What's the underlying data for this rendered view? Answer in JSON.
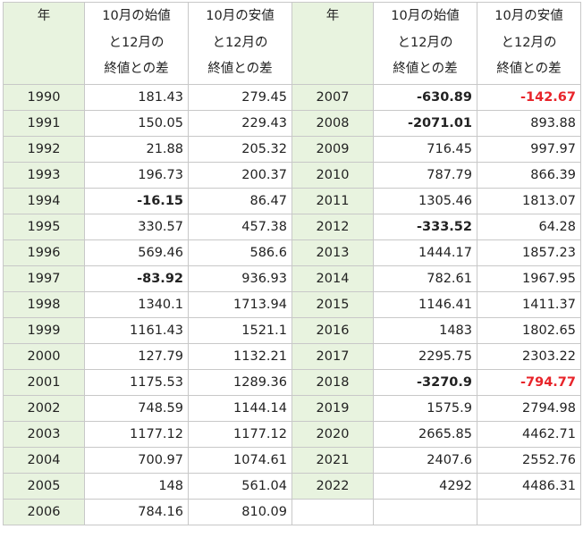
{
  "headers": {
    "year": "年",
    "start_diff": [
      "10月の始値",
      "と12月の",
      "終値との差"
    ],
    "low_diff": [
      "10月の安値",
      "と12月の",
      "終値との差"
    ]
  },
  "rows": [
    {
      "left": {
        "year": "1990",
        "a": "181.43",
        "b": "279.45",
        "a_bold": false,
        "b_bold": false,
        "b_red": false
      },
      "right": {
        "year": "2007",
        "a": "-630.89",
        "b": "-142.67",
        "a_bold": true,
        "b_bold": true,
        "b_red": true
      }
    },
    {
      "left": {
        "year": "1991",
        "a": "150.05",
        "b": "229.43",
        "a_bold": false,
        "b_bold": false,
        "b_red": false
      },
      "right": {
        "year": "2008",
        "a": "-2071.01",
        "b": "893.88",
        "a_bold": true,
        "b_bold": false,
        "b_red": false
      }
    },
    {
      "left": {
        "year": "1992",
        "a": "21.88",
        "b": "205.32",
        "a_bold": false,
        "b_bold": false,
        "b_red": false
      },
      "right": {
        "year": "2009",
        "a": "716.45",
        "b": "997.97",
        "a_bold": false,
        "b_bold": false,
        "b_red": false
      }
    },
    {
      "left": {
        "year": "1993",
        "a": "196.73",
        "b": "200.37",
        "a_bold": false,
        "b_bold": false,
        "b_red": false
      },
      "right": {
        "year": "2010",
        "a": "787.79",
        "b": "866.39",
        "a_bold": false,
        "b_bold": false,
        "b_red": false
      }
    },
    {
      "left": {
        "year": "1994",
        "a": "-16.15",
        "b": "86.47",
        "a_bold": true,
        "b_bold": false,
        "b_red": false
      },
      "right": {
        "year": "2011",
        "a": "1305.46",
        "b": "1813.07",
        "a_bold": false,
        "b_bold": false,
        "b_red": false
      }
    },
    {
      "left": {
        "year": "1995",
        "a": "330.57",
        "b": "457.38",
        "a_bold": false,
        "b_bold": false,
        "b_red": false
      },
      "right": {
        "year": "2012",
        "a": "-333.52",
        "b": "64.28",
        "a_bold": true,
        "b_bold": false,
        "b_red": false
      }
    },
    {
      "left": {
        "year": "1996",
        "a": "569.46",
        "b": "586.6",
        "a_bold": false,
        "b_bold": false,
        "b_red": false
      },
      "right": {
        "year": "2013",
        "a": "1444.17",
        "b": "1857.23",
        "a_bold": false,
        "b_bold": false,
        "b_red": false
      }
    },
    {
      "left": {
        "year": "1997",
        "a": "-83.92",
        "b": "936.93",
        "a_bold": true,
        "b_bold": false,
        "b_red": false
      },
      "right": {
        "year": "2014",
        "a": "782.61",
        "b": "1967.95",
        "a_bold": false,
        "b_bold": false,
        "b_red": false
      }
    },
    {
      "left": {
        "year": "1998",
        "a": "1340.1",
        "b": "1713.94",
        "a_bold": false,
        "b_bold": false,
        "b_red": false
      },
      "right": {
        "year": "2015",
        "a": "1146.41",
        "b": "1411.37",
        "a_bold": false,
        "b_bold": false,
        "b_red": false
      }
    },
    {
      "left": {
        "year": "1999",
        "a": "1161.43",
        "b": "1521.1",
        "a_bold": false,
        "b_bold": false,
        "b_red": false
      },
      "right": {
        "year": "2016",
        "a": "1483",
        "b": "1802.65",
        "a_bold": false,
        "b_bold": false,
        "b_red": false
      }
    },
    {
      "left": {
        "year": "2000",
        "a": "127.79",
        "b": "1132.21",
        "a_bold": false,
        "b_bold": false,
        "b_red": false
      },
      "right": {
        "year": "2017",
        "a": "2295.75",
        "b": "2303.22",
        "a_bold": false,
        "b_bold": false,
        "b_red": false
      }
    },
    {
      "left": {
        "year": "2001",
        "a": "1175.53",
        "b": "1289.36",
        "a_bold": false,
        "b_bold": false,
        "b_red": false
      },
      "right": {
        "year": "2018",
        "a": "-3270.9",
        "b": "-794.77",
        "a_bold": true,
        "b_bold": true,
        "b_red": true
      }
    },
    {
      "left": {
        "year": "2002",
        "a": "748.59",
        "b": "1144.14",
        "a_bold": false,
        "b_bold": false,
        "b_red": false
      },
      "right": {
        "year": "2019",
        "a": "1575.9",
        "b": "2794.98",
        "a_bold": false,
        "b_bold": false,
        "b_red": false
      }
    },
    {
      "left": {
        "year": "2003",
        "a": "1177.12",
        "b": "1177.12",
        "a_bold": false,
        "b_bold": false,
        "b_red": false
      },
      "right": {
        "year": "2020",
        "a": "2665.85",
        "b": "4462.71",
        "a_bold": false,
        "b_bold": false,
        "b_red": false
      }
    },
    {
      "left": {
        "year": "2004",
        "a": "700.97",
        "b": "1074.61",
        "a_bold": false,
        "b_bold": false,
        "b_red": false
      },
      "right": {
        "year": "2021",
        "a": "2407.6",
        "b": "2552.76",
        "a_bold": false,
        "b_bold": false,
        "b_red": false
      }
    },
    {
      "left": {
        "year": "2005",
        "a": "148",
        "b": "561.04",
        "a_bold": false,
        "b_bold": false,
        "b_red": false
      },
      "right": {
        "year": "2022",
        "a": "4292",
        "b": "4486.31",
        "a_bold": false,
        "b_bold": false,
        "b_red": false
      }
    },
    {
      "left": {
        "year": "2006",
        "a": "784.16",
        "b": "810.09",
        "a_bold": false,
        "b_bold": false,
        "b_red": false
      },
      "right": null
    }
  ],
  "colors": {
    "year_bg": "#e8f3df",
    "negative_red": "#e8242a",
    "grid": "#c8c8c8"
  }
}
